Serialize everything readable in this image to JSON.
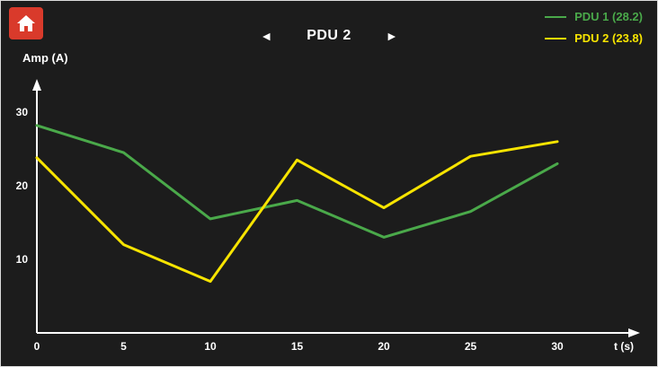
{
  "header": {
    "prev_label": "◄",
    "title": "PDU 2",
    "next_label": "►"
  },
  "legend": [
    {
      "label": "PDU 1 (28.2)",
      "color": "#4aa94a"
    },
    {
      "label": "PDU 2 (23.8)",
      "color": "#f7e400"
    }
  ],
  "chart_data": {
    "type": "line",
    "x": [
      0,
      5,
      10,
      15,
      20,
      25,
      30
    ],
    "series": [
      {
        "name": "PDU 1",
        "color": "#4aa94a",
        "values": [
          28.2,
          24.5,
          15.5,
          18,
          13,
          16.5,
          23
        ]
      },
      {
        "name": "PDU 2",
        "color": "#f7e400",
        "values": [
          23.8,
          12,
          7,
          23.5,
          17,
          24,
          26
        ]
      }
    ],
    "title": "PDU 2",
    "xlabel": "t (s)",
    "ylabel": "Amp (A)",
    "xticks": [
      0,
      5,
      10,
      15,
      20,
      25,
      30
    ],
    "yticks": [
      10,
      20,
      30
    ],
    "xlim": [
      0,
      33
    ],
    "ylim": [
      0,
      33
    ],
    "grid": false,
    "legend_position": "top-right"
  }
}
